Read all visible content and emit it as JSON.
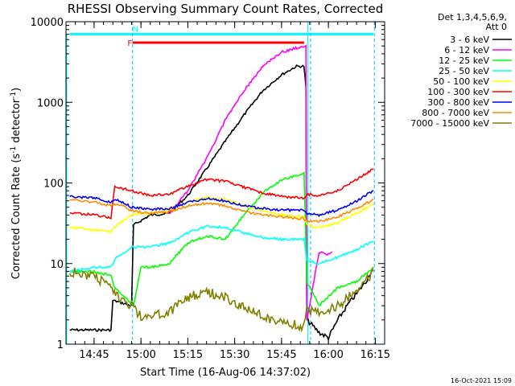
{
  "chart_data": {
    "type": "line",
    "title": "RHESSI Observing Summary Count Rates, Corrected",
    "xlabel": "Start Time (16-Aug-06 14:37:02)",
    "ylabel_main": "Corrected Count Rate (s",
    "ylabel_sup1": "-1",
    "ylabel_mid": " detector",
    "ylabel_sup2": "-1",
    "ylabel_end": ")",
    "y_scale": "log",
    "ylim": [
      1,
      10000
    ],
    "xlim_minutes": [
      14.6,
      16.3
    ],
    "x_ticks": [
      {
        "label": "14:45",
        "value": 14.75
      },
      {
        "label": "15:00",
        "value": 15.0
      },
      {
        "label": "15:15",
        "value": 15.25
      },
      {
        "label": "15:30",
        "value": 15.5
      },
      {
        "label": "15:45",
        "value": 15.75
      },
      {
        "label": "16:00",
        "value": 16.0
      },
      {
        "label": "16:15",
        "value": 16.25
      }
    ],
    "y_ticks": [
      {
        "label": "1",
        "value": 1
      },
      {
        "label": "10",
        "value": 10
      },
      {
        "label": "100",
        "value": 100
      },
      {
        "label": "1000",
        "value": 1000
      },
      {
        "label": "10000",
        "value": 10000
      }
    ],
    "legend_header": [
      "Det 1,3,4,5,6,9,",
      "Att 0"
    ],
    "legend_placement": "right",
    "series": [
      {
        "name": "3 - 6 keV",
        "color": "#000000",
        "points": [
          [
            14.62,
            1.5
          ],
          [
            14.84,
            1.5
          ],
          [
            14.85,
            3.5
          ],
          [
            14.95,
            3
          ],
          [
            14.96,
            30
          ],
          [
            15.05,
            40
          ],
          [
            15.15,
            42
          ],
          [
            15.25,
            70
          ],
          [
            15.35,
            150
          ],
          [
            15.45,
            330
          ],
          [
            15.55,
            700
          ],
          [
            15.65,
            1400
          ],
          [
            15.75,
            2200
          ],
          [
            15.83,
            2800
          ],
          [
            15.87,
            2800
          ],
          [
            15.88,
            1500
          ],
          [
            15.885,
            2
          ],
          [
            15.95,
            1.4
          ],
          [
            16.0,
            1.2
          ],
          [
            16.05,
            2
          ],
          [
            16.1,
            3
          ],
          [
            16.2,
            6
          ],
          [
            16.24,
            9
          ]
        ]
      },
      {
        "name": "6 - 12 keV",
        "color": "#ff00ff",
        "points": [
          [
            15.15,
            42
          ],
          [
            15.25,
            80
          ],
          [
            15.35,
            200
          ],
          [
            15.45,
            600
          ],
          [
            15.55,
            1400
          ],
          [
            15.65,
            2800
          ],
          [
            15.75,
            4200
          ],
          [
            15.87,
            5000
          ],
          [
            15.88,
            5000
          ],
          [
            15.885,
            2
          ],
          [
            15.95,
            14
          ],
          [
            16.0,
            13
          ],
          [
            16.02,
            14
          ]
        ]
      },
      {
        "name": "12 - 25 keV",
        "color": "#00ff00",
        "points": [
          [
            14.62,
            8
          ],
          [
            14.75,
            8
          ],
          [
            14.84,
            7
          ],
          [
            14.86,
            5
          ],
          [
            14.96,
            3
          ],
          [
            15.0,
            9
          ],
          [
            15.05,
            9
          ],
          [
            15.15,
            10
          ],
          [
            15.25,
            18
          ],
          [
            15.35,
            22
          ],
          [
            15.45,
            20
          ],
          [
            15.55,
            40
          ],
          [
            15.65,
            75
          ],
          [
            15.75,
            110
          ],
          [
            15.87,
            130
          ],
          [
            15.885,
            6
          ],
          [
            15.95,
            3
          ],
          [
            16.05,
            5
          ],
          [
            16.15,
            6
          ],
          [
            16.24,
            9
          ]
        ]
      },
      {
        "name": "25 - 50 keV",
        "color": "#00ffff",
        "points": [
          [
            14.62,
            8
          ],
          [
            14.75,
            9
          ],
          [
            14.84,
            9
          ],
          [
            14.87,
            12
          ],
          [
            14.95,
            16
          ],
          [
            15.05,
            16
          ],
          [
            15.15,
            18
          ],
          [
            15.25,
            24
          ],
          [
            15.35,
            29
          ],
          [
            15.45,
            28
          ],
          [
            15.55,
            24
          ],
          [
            15.65,
            21
          ],
          [
            15.75,
            20
          ],
          [
            15.87,
            20
          ],
          [
            15.885,
            11
          ],
          [
            15.95,
            10
          ],
          [
            16.05,
            12
          ],
          [
            16.15,
            15
          ],
          [
            16.24,
            19
          ]
        ]
      },
      {
        "name": "50 - 100 keV",
        "color": "#ffff00",
        "points": [
          [
            14.62,
            28
          ],
          [
            14.75,
            26
          ],
          [
            14.84,
            25
          ],
          [
            14.87,
            30
          ],
          [
            14.95,
            40
          ],
          [
            15.05,
            42
          ],
          [
            15.15,
            46
          ],
          [
            15.25,
            58
          ],
          [
            15.35,
            66
          ],
          [
            15.45,
            62
          ],
          [
            15.55,
            52
          ],
          [
            15.65,
            45
          ],
          [
            15.75,
            40
          ],
          [
            15.87,
            38
          ],
          [
            15.885,
            30
          ],
          [
            15.95,
            28
          ],
          [
            16.05,
            32
          ],
          [
            16.15,
            42
          ],
          [
            16.24,
            55
          ]
        ]
      },
      {
        "name": "100 - 300 keV",
        "color": "#ff0000",
        "points": [
          [
            14.62,
            43
          ],
          [
            14.75,
            40
          ],
          [
            14.84,
            37
          ],
          [
            14.86,
            90
          ],
          [
            14.95,
            80
          ],
          [
            15.05,
            70
          ],
          [
            15.15,
            72
          ],
          [
            15.25,
            92
          ],
          [
            15.35,
            110
          ],
          [
            15.45,
            105
          ],
          [
            15.55,
            88
          ],
          [
            15.65,
            75
          ],
          [
            15.75,
            68
          ],
          [
            15.87,
            65
          ],
          [
            15.885,
            72
          ],
          [
            15.95,
            70
          ],
          [
            16.05,
            80
          ],
          [
            16.15,
            110
          ],
          [
            16.24,
            150
          ]
        ]
      },
      {
        "name": "300 - 800 keV",
        "color": "#0000ff",
        "points": [
          [
            14.62,
            68
          ],
          [
            14.75,
            65
          ],
          [
            14.84,
            58
          ],
          [
            14.87,
            62
          ],
          [
            14.95,
            50
          ],
          [
            15.05,
            47
          ],
          [
            15.15,
            48
          ],
          [
            15.25,
            58
          ],
          [
            15.35,
            64
          ],
          [
            15.45,
            60
          ],
          [
            15.55,
            52
          ],
          [
            15.65,
            48
          ],
          [
            15.75,
            46
          ],
          [
            15.87,
            46
          ],
          [
            15.885,
            42
          ],
          [
            15.95,
            40
          ],
          [
            16.05,
            46
          ],
          [
            16.15,
            60
          ],
          [
            16.24,
            80
          ]
        ]
      },
      {
        "name": "800 - 7000 keV",
        "color": "#ff8c00",
        "points": [
          [
            14.62,
            62
          ],
          [
            14.75,
            58
          ],
          [
            14.84,
            52
          ],
          [
            14.87,
            56
          ],
          [
            14.95,
            45
          ],
          [
            15.05,
            42
          ],
          [
            15.15,
            44
          ],
          [
            15.25,
            52
          ],
          [
            15.35,
            56
          ],
          [
            15.45,
            52
          ],
          [
            15.55,
            44
          ],
          [
            15.65,
            40
          ],
          [
            15.75,
            38
          ],
          [
            15.87,
            36
          ],
          [
            15.885,
            34
          ],
          [
            15.95,
            33
          ],
          [
            16.05,
            38
          ],
          [
            16.15,
            48
          ],
          [
            16.24,
            62
          ]
        ]
      },
      {
        "name": "7000 - 15000 keV",
        "color": "#808000",
        "points": [
          [
            14.62,
            8
          ],
          [
            14.75,
            7
          ],
          [
            14.84,
            5
          ],
          [
            14.87,
            4
          ],
          [
            14.95,
            3
          ],
          [
            15.0,
            2.2
          ],
          [
            15.05,
            2.3
          ],
          [
            15.15,
            2.5
          ],
          [
            15.25,
            3.8
          ],
          [
            15.35,
            4.5
          ],
          [
            15.45,
            3.8
          ],
          [
            15.55,
            2.8
          ],
          [
            15.65,
            2.2
          ],
          [
            15.75,
            1.8
          ],
          [
            15.87,
            1.7
          ],
          [
            15.885,
            2.6
          ],
          [
            15.95,
            2.5
          ],
          [
            16.05,
            3
          ],
          [
            16.15,
            4.5
          ],
          [
            16.24,
            8
          ]
        ]
      }
    ],
    "flags": [
      {
        "label": "F",
        "color": "#ff0000",
        "start": 14.955,
        "end": 15.87,
        "y": 5500,
        "label_pos": 14.94
      },
      {
        "label": "N",
        "color": "#00ffff",
        "start": 14.62,
        "end": 16.24,
        "y": 7000,
        "label_pos": 14.97
      }
    ],
    "boundaries": [
      {
        "x": 14.955,
        "style": "dashed",
        "color": "#00bfff"
      },
      {
        "x": 15.89,
        "style": "solid",
        "color": "#00ffff"
      },
      {
        "x": 15.905,
        "style": "dashed",
        "color": "#00bfff"
      },
      {
        "x": 16.245,
        "style": "dashed",
        "color": "#00bfff"
      }
    ],
    "footer_stamp": "16-Oct-2021 15:09"
  }
}
